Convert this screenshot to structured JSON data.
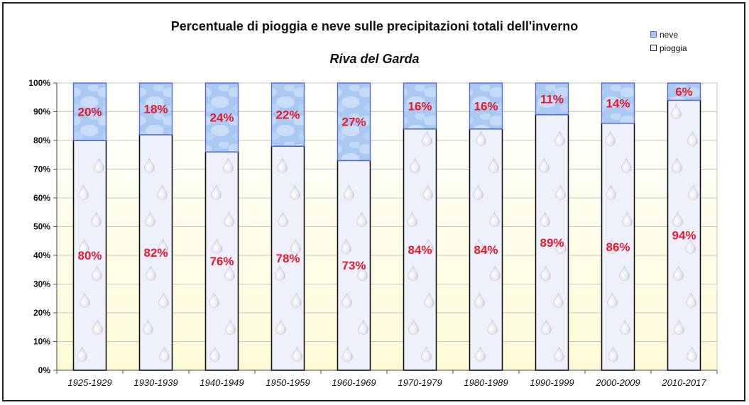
{
  "chart_data": {
    "type": "bar",
    "stacked": true,
    "title": "Percentuale di pioggia e neve sulle precipitazioni totali dell'inverno",
    "subtitle": "Riva del Garda",
    "categories": [
      "1925-1929",
      "1930-1939",
      "1940-1949",
      "1950-1959",
      "1960-1969",
      "1970-1979",
      "1980-1989",
      "1990-1999",
      "2000-2009",
      "2010-2017"
    ],
    "series": [
      {
        "name": "pioggia",
        "values": [
          80,
          82,
          76,
          78,
          73,
          84,
          84,
          89,
          86,
          94
        ],
        "labels": [
          "80%",
          "82%",
          "76%",
          "78%",
          "73%",
          "84%",
          "84%",
          "89%",
          "86%",
          "94%"
        ],
        "color": "#eef0fc"
      },
      {
        "name": "neve",
        "values": [
          20,
          18,
          24,
          22,
          27,
          16,
          16,
          11,
          14,
          6
        ],
        "labels": [
          "20%",
          "18%",
          "24%",
          "22%",
          "27%",
          "16%",
          "16%",
          "11%",
          "14%",
          "6%"
        ],
        "color": "#a7c7f2"
      }
    ],
    "ylim": [
      0,
      100
    ],
    "yticks": [
      "0%",
      "10%",
      "20%",
      "30%",
      "40%",
      "50%",
      "60%",
      "70%",
      "80%",
      "90%",
      "100%"
    ],
    "grid": true,
    "legend_position": "top-right",
    "label_color": "#e8192c",
    "background_gradient": [
      "#ffffff",
      "#fdfbd6"
    ]
  }
}
